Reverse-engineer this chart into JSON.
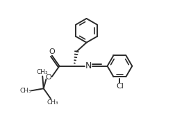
{
  "bg_color": "#ffffff",
  "line_color": "#2a2a2a",
  "lw": 1.4,
  "font_size": 8.0,
  "fig_w": 2.53,
  "fig_h": 1.84,
  "dpi": 100,
  "xlim": [
    0,
    10
  ],
  "ylim": [
    0,
    7.3
  ]
}
